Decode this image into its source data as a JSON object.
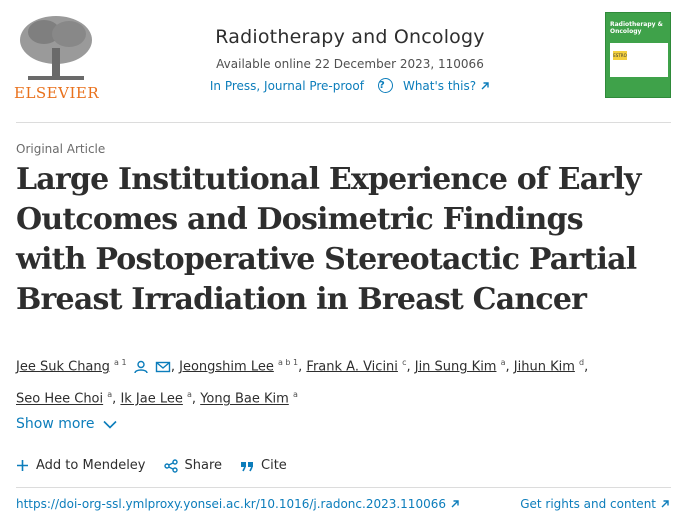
{
  "header": {
    "publisher": "ELSEVIER",
    "journal_title": "Radiotherapy and Oncology",
    "availability": "Available online 22 December 2023, 110066",
    "status_link": "In Press, Journal Pre-proof",
    "help_link": "What's this?",
    "cover_title": "Radiotherapy & Oncology",
    "cover_badge": "ESTRO"
  },
  "article": {
    "type": "Original Article",
    "title": "Large Institutional Experience of Early Outcomes and Dosimetric Findings with Postoperative Stereotactic Partial Breast Irradiation in Breast Cancer",
    "authors": [
      {
        "name": "Jee Suk Chang",
        "sup": "a 1"
      },
      {
        "name": "Jeongshim Lee",
        "sup": "a b 1"
      },
      {
        "name": "Frank A. Vicini",
        "sup": "c"
      },
      {
        "name": "Jin Sung Kim",
        "sup": "a"
      },
      {
        "name": "Jihun Kim",
        "sup": "d"
      },
      {
        "name": "Seo Hee Choi",
        "sup": "a"
      },
      {
        "name": "Ik Jae Lee",
        "sup": "a"
      },
      {
        "name": "Yong Bae Kim",
        "sup": "a"
      }
    ],
    "show_more": "Show more",
    "actions": {
      "mendeley": "Add to Mendeley",
      "share": "Share",
      "cite": "Cite"
    },
    "doi": "https://doi-org-ssl.ymlproxy.yonsei.ac.kr/10.1016/j.radonc.2023.110066",
    "rights": "Get rights and content"
  },
  "colors": {
    "link": "#0c7dbb",
    "publisher": "#e9711c",
    "cover": "#3fa24a"
  }
}
